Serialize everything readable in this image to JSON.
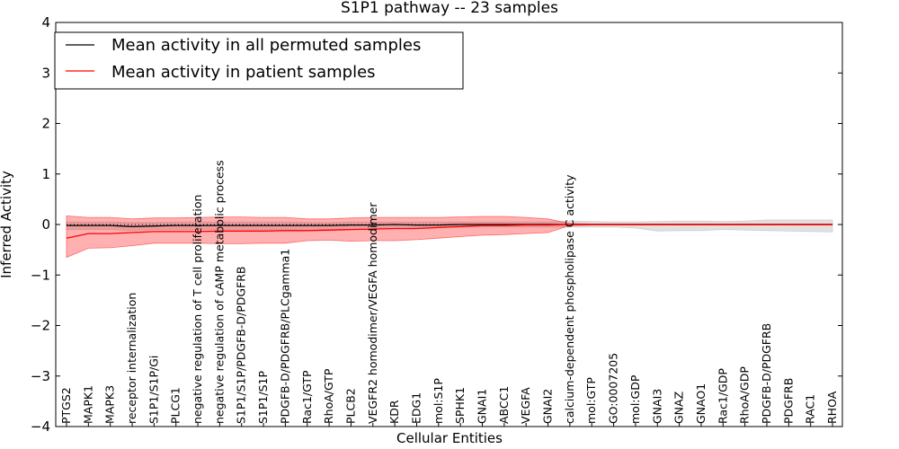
{
  "chart_data": {
    "type": "line",
    "title": "S1P1 pathway -- 23 samples",
    "xlabel": "Cellular Entities",
    "ylabel": "Inferred Activity",
    "ylim": [
      -4,
      4
    ],
    "yticks": [
      4,
      3,
      2,
      1,
      0,
      -1,
      -2,
      -3,
      -4
    ],
    "ytick_labels": [
      "4",
      "3",
      "2",
      "1",
      "0",
      "−1",
      "−2",
      "−3",
      "−4"
    ],
    "grid": false,
    "legend_position": "top-left",
    "categories": [
      "PTGS2",
      "MAPK1",
      "MAPK3",
      "receptor internalization",
      "S1P1/S1P/Gi",
      "PLCG1",
      "negative regulation of T cell proliferation",
      "negative regulation of cAMP metabolic process",
      "S1P1/S1P/PDGFB-D/PDGFRB",
      "S1P1/S1P",
      "PDGFB-D/PDGFRB/PLCgamma1",
      "Rac1/GTP",
      "RhoA/GTP",
      "PLCB2",
      "VEGFR2 homodimer/VEGFA homodimer",
      "KDR",
      "EDG1",
      "mol:S1P",
      "SPHK1",
      "GNAI1",
      "ABCC1",
      "VEGFA",
      "GNAI2",
      "calcium-dependent phospholipase C activity",
      "mol:GTP",
      "GO:0007205",
      "mol:GDP",
      "GNAI3",
      "GNAZ",
      "GNAO1",
      "Rac1/GDP",
      "RhoA/GDP",
      "PDGFB-D/PDGFRB",
      "PDGFRB",
      "RAC1",
      "RHOA"
    ],
    "series": [
      {
        "name": "Mean activity in all permuted samples",
        "color": "#000000",
        "values": [
          -0.02,
          -0.02,
          -0.02,
          -0.04,
          -0.03,
          -0.02,
          -0.02,
          -0.02,
          -0.02,
          -0.02,
          -0.02,
          -0.02,
          -0.02,
          -0.01,
          -0.01,
          0.0,
          -0.01,
          -0.01,
          0.0,
          0.0,
          0.0,
          0.0,
          0.0,
          0.0,
          0.0,
          0.0,
          0.0,
          0.0,
          0.0,
          0.0,
          0.0,
          0.0,
          0.0,
          0.0,
          0.0,
          0.0
        ],
        "band_upper": [
          0.05,
          0.05,
          0.05,
          0.04,
          0.04,
          0.05,
          0.05,
          0.05,
          0.05,
          0.05,
          0.05,
          0.04,
          0.04,
          0.05,
          0.05,
          0.05,
          0.05,
          0.05,
          0.05,
          0.05,
          0.05,
          0.05,
          0.05,
          0.07,
          0.06,
          0.05,
          0.05,
          0.06,
          0.07,
          0.07,
          0.06,
          0.07,
          0.09,
          0.09,
          0.09,
          0.09
        ],
        "band_lower": [
          -0.1,
          -0.1,
          -0.1,
          -0.12,
          -0.1,
          -0.1,
          -0.1,
          -0.1,
          -0.1,
          -0.1,
          -0.1,
          -0.12,
          -0.12,
          -0.1,
          -0.08,
          -0.05,
          -0.06,
          -0.06,
          -0.05,
          -0.05,
          -0.05,
          -0.05,
          -0.05,
          -0.05,
          -0.05,
          -0.05,
          -0.07,
          -0.13,
          -0.12,
          -0.12,
          -0.1,
          -0.11,
          -0.12,
          -0.13,
          -0.14,
          -0.15
        ]
      },
      {
        "name": "Mean activity in patient samples",
        "color": "#ff0000",
        "values": [
          -0.27,
          -0.18,
          -0.18,
          -0.16,
          -0.14,
          -0.14,
          -0.14,
          -0.13,
          -0.13,
          -0.13,
          -0.12,
          -0.12,
          -0.11,
          -0.1,
          -0.09,
          -0.08,
          -0.08,
          -0.06,
          -0.04,
          -0.02,
          -0.02,
          -0.01,
          -0.01,
          0.0,
          0.0,
          0.0,
          0.0,
          0.0,
          0.0,
          0.0,
          0.0,
          0.0,
          0.0,
          0.0,
          0.0,
          0.0
        ],
        "band_upper": [
          0.17,
          0.14,
          0.14,
          0.11,
          0.13,
          0.13,
          0.14,
          0.15,
          0.15,
          0.14,
          0.14,
          0.11,
          0.11,
          0.13,
          0.14,
          0.14,
          0.14,
          0.14,
          0.15,
          0.16,
          0.16,
          0.14,
          0.11,
          0.02,
          0.01,
          0.01,
          0.01,
          0.01,
          0.01,
          0.01,
          0.01,
          0.01,
          0.01,
          0.01,
          0.01,
          0.01
        ],
        "band_lower": [
          -0.65,
          -0.47,
          -0.46,
          -0.42,
          -0.37,
          -0.37,
          -0.37,
          -0.38,
          -0.38,
          -0.37,
          -0.37,
          -0.32,
          -0.31,
          -0.33,
          -0.32,
          -0.32,
          -0.3,
          -0.27,
          -0.24,
          -0.21,
          -0.2,
          -0.18,
          -0.16,
          -0.02,
          -0.01,
          -0.01,
          -0.01,
          -0.01,
          -0.01,
          -0.01,
          -0.01,
          -0.01,
          -0.01,
          -0.01,
          -0.01,
          -0.01
        ]
      }
    ],
    "reference_line": 0
  },
  "legend": {
    "items": [
      {
        "label": "Mean activity in all permuted samples",
        "color": "#000000"
      },
      {
        "label": "Mean activity in patient samples",
        "color": "#ff0000"
      }
    ]
  }
}
